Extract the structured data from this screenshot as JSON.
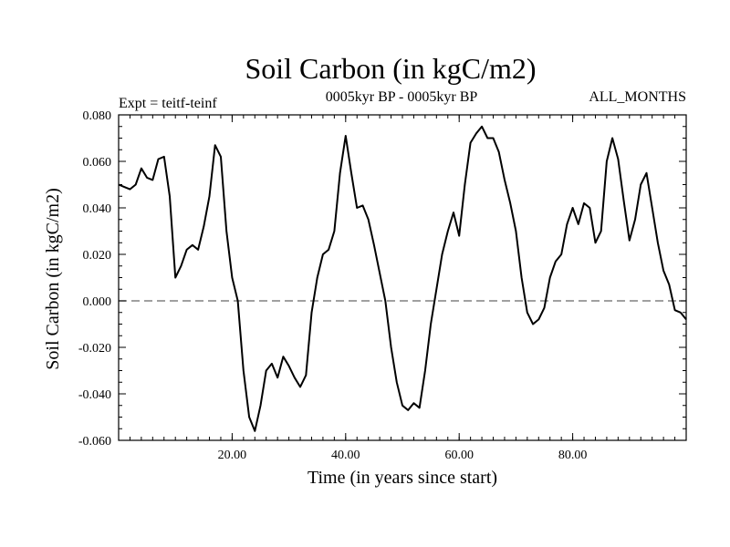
{
  "chart_data": {
    "type": "line",
    "title": "Soil Carbon (in kgC/m2)",
    "subtitle": "0005kyr BP - 0005kyr BP",
    "experiment_label": "Expt = teitf-teinf",
    "months_label": "ALL_MONTHS",
    "xlabel": "Time (in years since start)",
    "ylabel": "Soil Carbon (in kgC/m2)",
    "xlim": [
      0,
      100
    ],
    "ylim": [
      -0.06,
      0.08
    ],
    "xticks": [
      20,
      40,
      60,
      80
    ],
    "xtick_labels": [
      "20.00",
      "40.00",
      "60.00",
      "80.00"
    ],
    "yticks": [
      -0.06,
      -0.04,
      -0.02,
      0.0,
      0.02,
      0.04,
      0.06,
      0.08
    ],
    "ytick_labels": [
      "-0.060",
      "-0.040",
      "-0.020",
      "0.000",
      "0.020",
      "0.040",
      "0.060",
      "0.080"
    ],
    "reference_line": {
      "y": 0.0,
      "style": "dashed"
    },
    "colors": {
      "line": "#000000",
      "reference": "#808080",
      "axes": "#000000"
    },
    "series": [
      {
        "name": "Soil Carbon",
        "x": [
          0,
          1,
          2,
          3,
          4,
          5,
          6,
          7,
          8,
          9,
          10,
          11,
          12,
          13,
          14,
          15,
          16,
          17,
          18,
          19,
          20,
          21,
          22,
          23,
          24,
          25,
          26,
          27,
          28,
          29,
          30,
          31,
          32,
          33,
          34,
          35,
          36,
          37,
          38,
          39,
          40,
          41,
          42,
          43,
          44,
          45,
          46,
          47,
          48,
          49,
          50,
          51,
          52,
          53,
          54,
          55,
          56,
          57,
          58,
          59,
          60,
          61,
          62,
          63,
          64,
          65,
          66,
          67,
          68,
          69,
          70,
          71,
          72,
          73,
          74,
          75,
          76,
          77,
          78,
          79,
          80,
          81,
          82,
          83,
          84,
          85,
          86,
          87,
          88,
          89,
          90,
          91,
          92,
          93,
          94,
          95,
          96,
          97,
          98,
          99,
          100
        ],
        "values": [
          0.05,
          0.049,
          0.048,
          0.05,
          0.057,
          0.053,
          0.052,
          0.061,
          0.062,
          0.045,
          0.01,
          0.015,
          0.022,
          0.024,
          0.022,
          0.032,
          0.045,
          0.067,
          0.062,
          0.03,
          0.01,
          0.0,
          -0.03,
          -0.05,
          -0.056,
          -0.045,
          -0.03,
          -0.027,
          -0.033,
          -0.024,
          -0.028,
          -0.033,
          -0.037,
          -0.032,
          -0.005,
          0.01,
          0.02,
          0.022,
          0.03,
          0.055,
          0.071,
          0.055,
          0.04,
          0.041,
          0.035,
          0.024,
          0.012,
          0.0,
          -0.02,
          -0.035,
          -0.045,
          -0.047,
          -0.044,
          -0.046,
          -0.03,
          -0.01,
          0.005,
          0.02,
          0.03,
          0.038,
          0.028,
          0.05,
          0.068,
          0.072,
          0.075,
          0.07,
          0.07,
          0.064,
          0.052,
          0.042,
          0.03,
          0.01,
          -0.005,
          -0.01,
          -0.008,
          -0.003,
          0.01,
          0.017,
          0.02,
          0.033,
          0.04,
          0.033,
          0.042,
          0.04,
          0.025,
          0.03,
          0.06,
          0.07,
          0.061,
          0.043,
          0.026,
          0.035,
          0.05,
          0.055,
          0.04,
          0.025,
          0.013,
          0.007,
          -0.004,
          -0.005,
          -0.008
        ]
      }
    ]
  }
}
